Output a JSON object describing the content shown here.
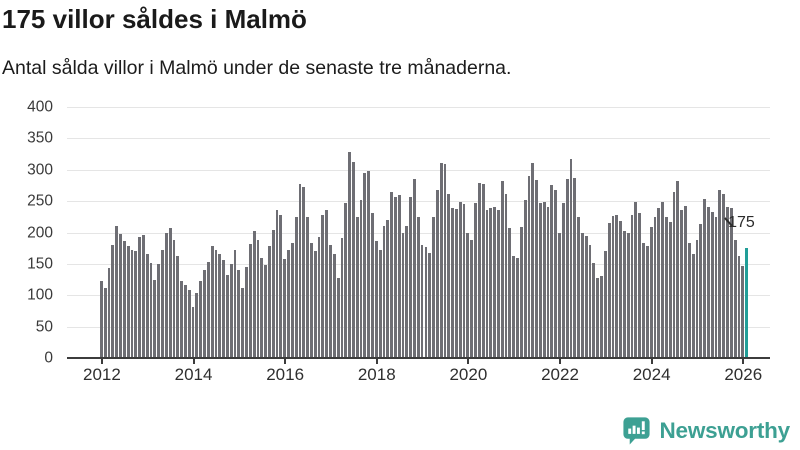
{
  "header": {
    "title": "175 villor såldes i Malmö",
    "subtitle": "Antal sålda villor i Malmö under de senaste tre månaderna."
  },
  "chart_data": {
    "type": "bar",
    "title": "175 villor såldes i Malmö",
    "subtitle": "Antal sålda villor i Malmö under de senaste tre månaderna.",
    "ylim": [
      0,
      400
    ],
    "y_ticks": [
      0,
      50,
      100,
      150,
      200,
      250,
      300,
      350,
      400
    ],
    "x_tick_labels": [
      "2012",
      "2014",
      "2016",
      "2018",
      "2020",
      "2022",
      "2024",
      "2026"
    ],
    "months_per_tick": 24,
    "grid": true,
    "bar_color": "#6e6e74",
    "series": [
      {
        "name": "Antal sålda villor",
        "values": [
          122,
          111,
          143,
          180,
          210,
          197,
          187,
          178,
          172,
          170,
          193,
          196,
          165,
          152,
          125,
          150,
          172,
          200,
          207,
          188,
          162,
          122,
          117,
          108,
          82,
          104,
          122,
          140,
          153,
          179,
          172,
          166,
          156,
          132,
          150,
          172,
          140,
          112,
          145,
          182,
          202,
          188,
          160,
          149,
          178,
          204,
          236,
          228,
          158,
          172,
          183,
          225,
          277,
          272,
          225,
          183,
          171,
          193,
          228,
          236,
          180,
          165,
          127,
          192,
          247,
          329,
          313,
          224,
          252,
          295,
          298,
          231,
          187,
          172,
          210,
          220,
          265,
          257,
          260,
          199,
          210,
          257,
          285,
          224,
          180,
          177,
          167,
          224,
          268,
          311,
          309,
          261,
          239,
          237,
          248,
          246,
          200,
          188,
          247,
          279,
          278,
          236,
          239,
          241,
          236,
          282,
          262,
          207,
          163,
          160,
          208,
          252,
          290,
          311,
          284,
          247,
          248,
          241,
          276,
          268,
          200,
          247,
          285,
          317,
          287,
          224,
          199,
          195,
          180,
          151,
          127,
          130,
          171,
          215,
          227,
          228,
          218,
          202,
          200,
          228,
          249,
          231,
          183,
          179,
          208,
          225,
          239,
          248,
          224,
          217,
          265,
          282,
          236,
          242,
          183,
          165,
          188,
          213,
          253,
          241,
          232,
          224,
          268,
          261,
          240,
          239,
          188,
          163,
          147,
          175
        ]
      }
    ],
    "highlight": {
      "index": 169,
      "value": 175,
      "label": "175",
      "color": "#219e98"
    }
  },
  "footer": {
    "brand": "Newsworthy",
    "brand_color": "#3da093",
    "logo_icon": "bar-chart-speech-bubble-icon"
  }
}
